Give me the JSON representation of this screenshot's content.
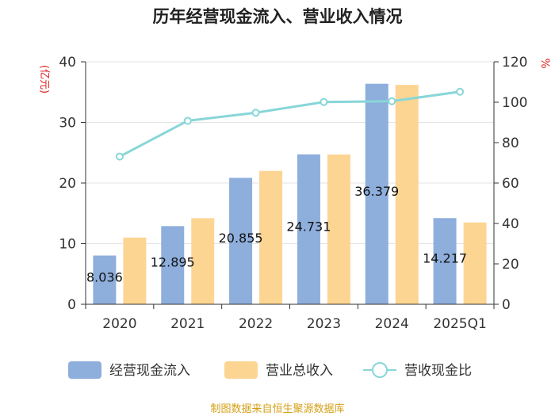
{
  "chart_data": {
    "type": "bar+line",
    "title": "历年经营现金流入、营业收入情况",
    "categories": [
      "2020",
      "2021",
      "2022",
      "2023",
      "2024",
      "2025Q1"
    ],
    "series": [
      {
        "name": "经营现金流入",
        "type": "bar",
        "axis": "left",
        "color": "#8eaedc",
        "values": [
          8.036,
          12.895,
          20.855,
          24.731,
          36.379,
          14.217
        ],
        "labels": [
          "8.036",
          "12.895",
          "20.855",
          "24.731",
          "36.379",
          "14.217"
        ]
      },
      {
        "name": "营业总收入",
        "type": "bar",
        "axis": "left",
        "color": "#fdd592",
        "values": [
          11.0,
          14.2,
          22.0,
          24.7,
          36.2,
          13.5
        ]
      },
      {
        "name": "营收现金比",
        "type": "line",
        "axis": "right",
        "color": "#88d6d8",
        "values": [
          73.1,
          90.8,
          94.8,
          100.1,
          100.5,
          105.2
        ]
      }
    ],
    "y_left": {
      "unit": "(亿元)",
      "min": 0,
      "max": 40,
      "ticks": [
        0,
        10,
        20,
        30,
        40
      ]
    },
    "y_right": {
      "unit": "%",
      "min": 0,
      "max": 120,
      "ticks": [
        0,
        20,
        40,
        60,
        80,
        100,
        120
      ]
    },
    "grid": true,
    "legend": "bottom"
  },
  "source": "制图数据来自恒生聚源数据库"
}
